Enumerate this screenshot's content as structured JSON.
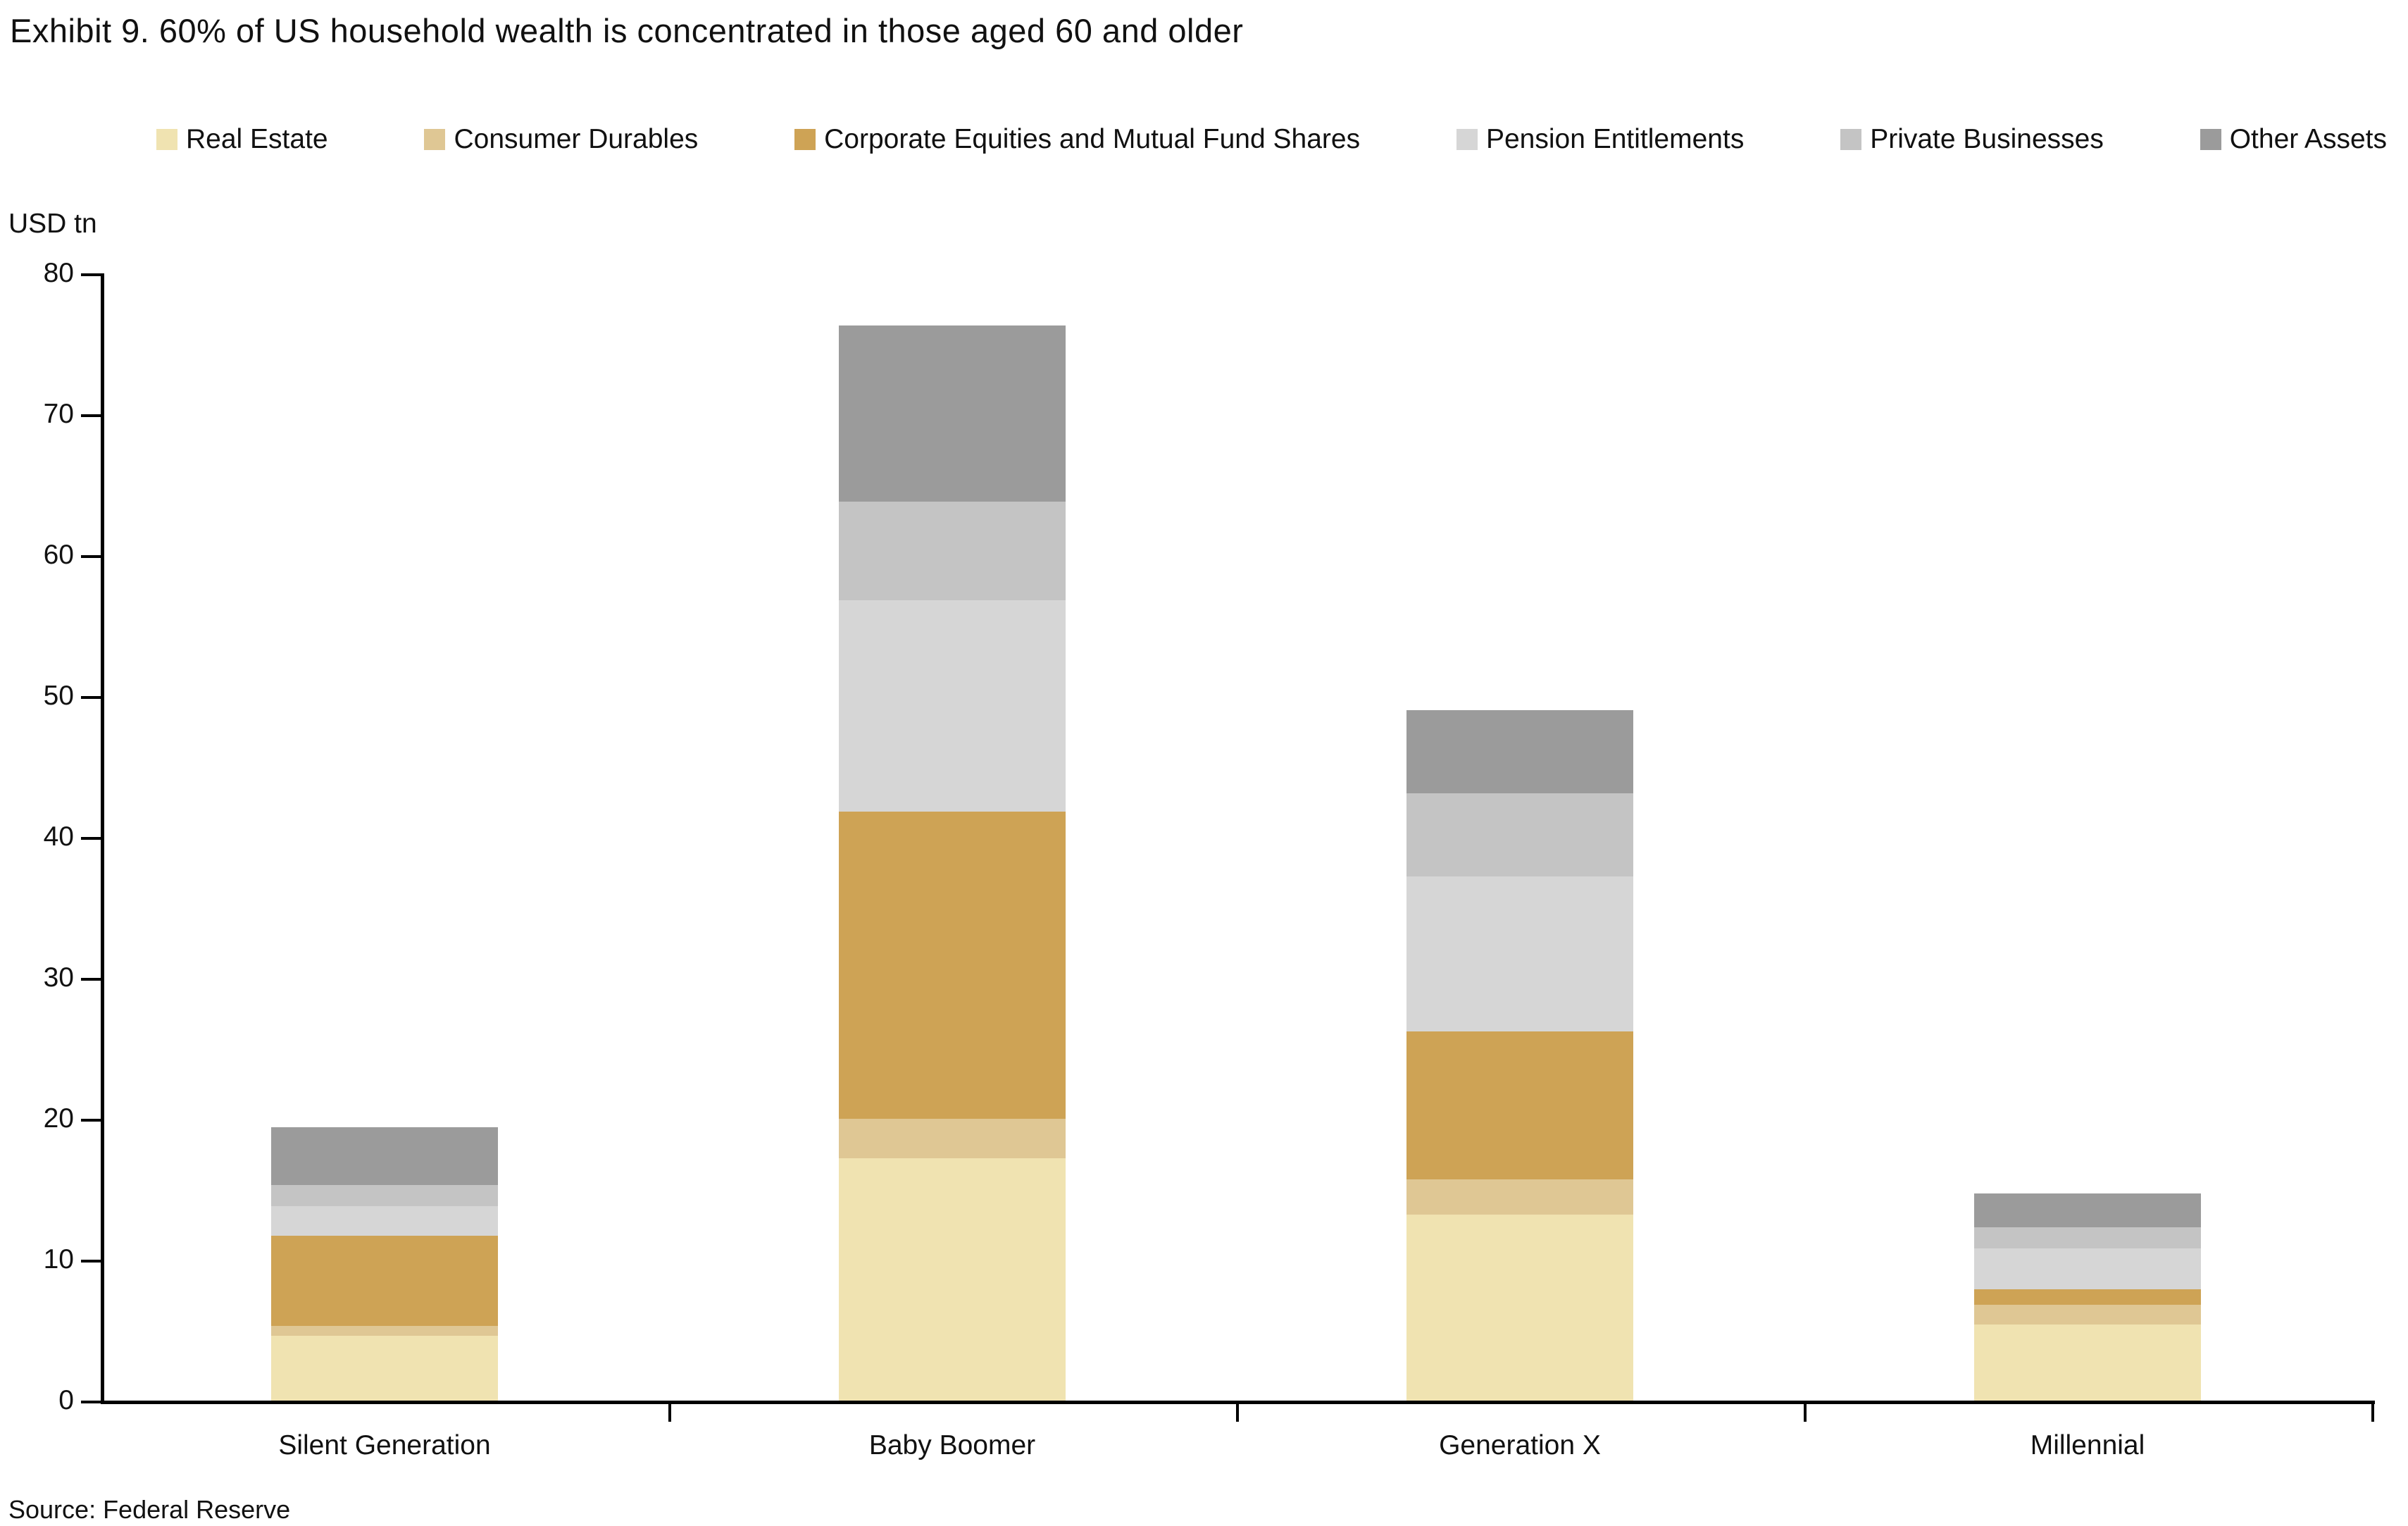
{
  "title": "Exhibit 9. 60% of US household wealth is concentrated in those aged 60 and older",
  "axis_title": "USD tn",
  "source": "Source: Federal Reserve",
  "chart_data": {
    "type": "bar",
    "stacked": true,
    "title": "Exhibit 9. 60% of US household wealth is concentrated in those aged 60 and older",
    "ylabel": "USD tn",
    "ylim": [
      0,
      80
    ],
    "yticks": [
      0,
      10,
      20,
      30,
      40,
      50,
      60,
      70,
      80
    ],
    "grid": false,
    "legend_position": "top",
    "categories": [
      "Silent Generation",
      "Baby Boomer",
      "Generation X",
      "Millennial"
    ],
    "series": [
      {
        "name": "Real Estate",
        "color": "#F0E3B1",
        "values": [
          4.6,
          17.2,
          13.2,
          5.4
        ]
      },
      {
        "name": "Consumer Durables",
        "color": "#DFC794",
        "values": [
          0.7,
          2.8,
          2.5,
          1.4
        ]
      },
      {
        "name": "Corporate Equities and Mutual Fund Shares",
        "color": "#CEA355",
        "values": [
          6.4,
          21.8,
          10.5,
          1.1
        ]
      },
      {
        "name": "Pension Entitlements",
        "color": "#D6D6D6",
        "values": [
          2.1,
          15.0,
          11.0,
          2.9
        ]
      },
      {
        "name": "Private Businesses",
        "color": "#C4C4C4",
        "values": [
          1.5,
          7.0,
          5.9,
          1.5
        ]
      },
      {
        "name": "Other Assets",
        "color": "#9B9B9B",
        "values": [
          4.1,
          12.5,
          5.9,
          2.4
        ]
      }
    ],
    "totals": [
      19.4,
      76.3,
      49.0,
      14.7
    ]
  }
}
